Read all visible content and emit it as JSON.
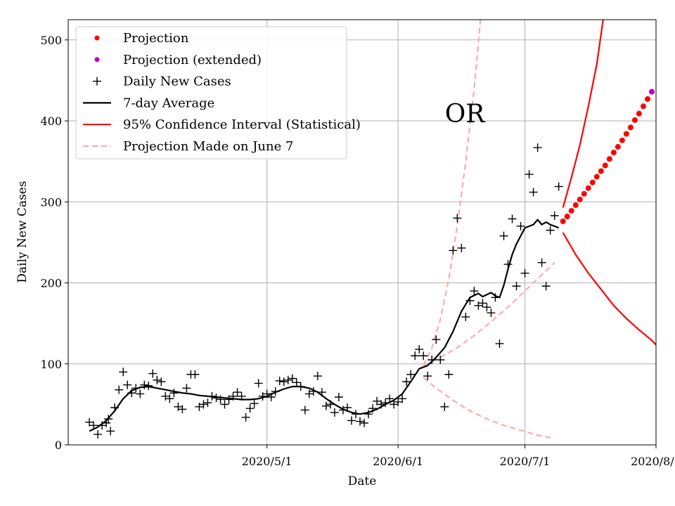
{
  "chart_data": {
    "type": "line",
    "title": "",
    "xlabel": "Date",
    "ylabel": "Daily New Cases",
    "annotation": "OR",
    "x_unit": "days since 2020-03-20",
    "xlim": [
      -5,
      134
    ],
    "ylim": [
      0,
      525
    ],
    "grid": true,
    "legend_location": "upper-left",
    "x_ticks": [
      {
        "day": 42,
        "label": "2020/5/1"
      },
      {
        "day": 73,
        "label": "2020/6/1"
      },
      {
        "day": 103,
        "label": "2020/7/1"
      },
      {
        "day": 134,
        "label": "2020/8/1"
      }
    ],
    "y_ticks": [
      0,
      100,
      200,
      300,
      400,
      500
    ],
    "legend": [
      {
        "key": "projection",
        "label": "Projection",
        "color": "#ff0000",
        "style": "dot"
      },
      {
        "key": "projection_extended",
        "label": "Projection (extended)",
        "color": "#bf00bf",
        "style": "dot"
      },
      {
        "key": "daily",
        "label": "Daily New Cases",
        "color": "#000000",
        "style": "plus"
      },
      {
        "key": "avg",
        "label": "7-day Average",
        "color": "#000000",
        "style": "line"
      },
      {
        "key": "ci",
        "label": "95% Confidence Interval (Statistical)",
        "color": "#ff0000",
        "style": "line"
      },
      {
        "key": "june7",
        "label": "Projection Made on June 7",
        "color": "#ffaaaa",
        "style": "dashed"
      }
    ],
    "series": [
      {
        "name": "Daily New Cases",
        "style": "plus",
        "color": "#000000",
        "points": [
          [
            0,
            28
          ],
          [
            1,
            24
          ],
          [
            2,
            13
          ],
          [
            3,
            24
          ],
          [
            4,
            27
          ],
          [
            4.5,
            32
          ],
          [
            5,
            17
          ],
          [
            6,
            46
          ],
          [
            7,
            68
          ],
          [
            8,
            90
          ],
          [
            9,
            74
          ],
          [
            10,
            64
          ],
          [
            11,
            70
          ],
          [
            12,
            63
          ],
          [
            13,
            74
          ],
          [
            14,
            73
          ],
          [
            15,
            88
          ],
          [
            16,
            80
          ],
          [
            17,
            78
          ],
          [
            18,
            60
          ],
          [
            19,
            57
          ],
          [
            20,
            64
          ],
          [
            21,
            47
          ],
          [
            22,
            44
          ],
          [
            23,
            70
          ],
          [
            24,
            87
          ],
          [
            25,
            87
          ],
          [
            26,
            47
          ],
          [
            27,
            50
          ],
          [
            28,
            52
          ],
          [
            29,
            60
          ],
          [
            30,
            58
          ],
          [
            31,
            56
          ],
          [
            32,
            50
          ],
          [
            33,
            56
          ],
          [
            34,
            60
          ],
          [
            35,
            65
          ],
          [
            36,
            60
          ],
          [
            37,
            34
          ],
          [
            38,
            45
          ],
          [
            39,
            51
          ],
          [
            40,
            76
          ],
          [
            41,
            60
          ],
          [
            42,
            63
          ],
          [
            43,
            59
          ],
          [
            44,
            66
          ],
          [
            45,
            79
          ],
          [
            46,
            78
          ],
          [
            47,
            80
          ],
          [
            48,
            82
          ],
          [
            49,
            77
          ],
          [
            50,
            72
          ],
          [
            51,
            43
          ],
          [
            52,
            63
          ],
          [
            53,
            66
          ],
          [
            54,
            85
          ],
          [
            55,
            65
          ],
          [
            56,
            48
          ],
          [
            57,
            50
          ],
          [
            58,
            40
          ],
          [
            59,
            59
          ],
          [
            60,
            43
          ],
          [
            61,
            46
          ],
          [
            62,
            30
          ],
          [
            63,
            38
          ],
          [
            64,
            29
          ],
          [
            65,
            27
          ],
          [
            66,
            38
          ],
          [
            67,
            45
          ],
          [
            68,
            54
          ],
          [
            69,
            50
          ],
          [
            70,
            52
          ],
          [
            71,
            57
          ],
          [
            72,
            50
          ],
          [
            73,
            53
          ],
          [
            74,
            57
          ],
          [
            75,
            78
          ],
          [
            76,
            87
          ],
          [
            77,
            110
          ],
          [
            78,
            118
          ],
          [
            79,
            110
          ],
          [
            80,
            85
          ],
          [
            81,
            105
          ],
          [
            82,
            130
          ],
          [
            83,
            105
          ],
          [
            84,
            47
          ],
          [
            85,
            87
          ],
          [
            86,
            240
          ],
          [
            87,
            280
          ],
          [
            88,
            243
          ],
          [
            89,
            158
          ],
          [
            90,
            178
          ],
          [
            91,
            190
          ],
          [
            92,
            172
          ],
          [
            93,
            175
          ],
          [
            94,
            170
          ],
          [
            95,
            163
          ],
          [
            96,
            182
          ],
          [
            97,
            125
          ],
          [
            98,
            258
          ],
          [
            99,
            223
          ],
          [
            100,
            279
          ],
          [
            101,
            196
          ],
          [
            102,
            270
          ],
          [
            103,
            212
          ],
          [
            104,
            334
          ],
          [
            105,
            312
          ],
          [
            106,
            367
          ],
          [
            107,
            225
          ],
          [
            108,
            196
          ],
          [
            109,
            265
          ],
          [
            110,
            283
          ],
          [
            111,
            319
          ]
        ]
      },
      {
        "name": "7-day Average",
        "style": "line",
        "color": "#000000",
        "points": [
          [
            0,
            17
          ],
          [
            2,
            22
          ],
          [
            4,
            30
          ],
          [
            6,
            42
          ],
          [
            8,
            57
          ],
          [
            10,
            67
          ],
          [
            12,
            71
          ],
          [
            14,
            72
          ],
          [
            16,
            70
          ],
          [
            18,
            68
          ],
          [
            20,
            66
          ],
          [
            22,
            64
          ],
          [
            24,
            63
          ],
          [
            26,
            61
          ],
          [
            28,
            60
          ],
          [
            30,
            59
          ],
          [
            32,
            58
          ],
          [
            34,
            57
          ],
          [
            36,
            56
          ],
          [
            38,
            56
          ],
          [
            40,
            57
          ],
          [
            42,
            60
          ],
          [
            44,
            65
          ],
          [
            46,
            69
          ],
          [
            48,
            72
          ],
          [
            50,
            72
          ],
          [
            52,
            70
          ],
          [
            54,
            65
          ],
          [
            56,
            57
          ],
          [
            58,
            50
          ],
          [
            60,
            44
          ],
          [
            62,
            40
          ],
          [
            64,
            38
          ],
          [
            66,
            40
          ],
          [
            68,
            44
          ],
          [
            70,
            50
          ],
          [
            72,
            55
          ],
          [
            74,
            63
          ],
          [
            76,
            78
          ],
          [
            78,
            94
          ],
          [
            80,
            98
          ],
          [
            82,
            108
          ],
          [
            84,
            120
          ],
          [
            86,
            140
          ],
          [
            88,
            165
          ],
          [
            90,
            182
          ],
          [
            92,
            187
          ],
          [
            93,
            183
          ],
          [
            95,
            188
          ],
          [
            96,
            184
          ],
          [
            97,
            182
          ],
          [
            98,
            197
          ],
          [
            99,
            217
          ],
          [
            100,
            235
          ],
          [
            101,
            248
          ],
          [
            102,
            258
          ],
          [
            103,
            268
          ],
          [
            104,
            270
          ],
          [
            105,
            272
          ],
          [
            106,
            278
          ],
          [
            107,
            272
          ],
          [
            108,
            275
          ],
          [
            109,
            272
          ],
          [
            110,
            270
          ],
          [
            111,
            268
          ]
        ]
      },
      {
        "name": "Projection",
        "style": "dot",
        "color": "#ff0000",
        "points": [
          [
            112,
            276
          ],
          [
            113,
            282
          ],
          [
            114,
            289
          ],
          [
            115,
            296
          ],
          [
            116,
            303
          ],
          [
            117,
            310
          ],
          [
            118,
            317
          ],
          [
            119,
            324
          ],
          [
            120,
            331
          ],
          [
            121,
            338
          ],
          [
            122,
            345
          ],
          [
            123,
            353
          ],
          [
            124,
            361
          ],
          [
            125,
            368
          ],
          [
            126,
            376
          ],
          [
            127,
            384
          ],
          [
            128,
            392
          ],
          [
            129,
            401
          ],
          [
            130,
            409
          ],
          [
            131,
            418
          ],
          [
            132,
            427
          ]
        ]
      },
      {
        "name": "Projection (extended)",
        "style": "dot",
        "color": "#bf00bf",
        "points": [
          [
            133,
            436
          ]
        ]
      },
      {
        "name": "95% CI upper",
        "style": "line",
        "color": "#ff0000",
        "points": [
          [
            112,
            293
          ],
          [
            114,
            330
          ],
          [
            116,
            370
          ],
          [
            118,
            418
          ],
          [
            120,
            470
          ],
          [
            121.5,
            525
          ]
        ]
      },
      {
        "name": "95% CI lower",
        "style": "line",
        "color": "#ff0000",
        "points": [
          [
            112,
            262
          ],
          [
            115,
            235
          ],
          [
            118,
            212
          ],
          [
            121,
            192
          ],
          [
            124,
            172
          ],
          [
            127,
            156
          ],
          [
            130,
            142
          ],
          [
            133,
            129
          ],
          [
            134.5,
            121
          ]
        ]
      },
      {
        "name": "June 7 upper",
        "style": "dashed",
        "color": "#ffaaaa",
        "points": [
          [
            79,
            98
          ],
          [
            81,
            120
          ],
          [
            83,
            155
          ],
          [
            85,
            205
          ],
          [
            87,
            270
          ],
          [
            89,
            350
          ],
          [
            91,
            440
          ],
          [
            92.5,
            525
          ]
        ]
      },
      {
        "name": "June 7 middle",
        "style": "dashed",
        "color": "#ffaaaa",
        "points": [
          [
            79,
            98
          ],
          [
            83,
            108
          ],
          [
            87,
            120
          ],
          [
            91,
            135
          ],
          [
            95,
            152
          ],
          [
            99,
            170
          ],
          [
            103,
            190
          ],
          [
            107,
            210
          ],
          [
            110,
            225
          ]
        ]
      },
      {
        "name": "June 7 lower",
        "style": "dashed",
        "color": "#ffaaaa",
        "points": [
          [
            79,
            83
          ],
          [
            82,
            70
          ],
          [
            86,
            55
          ],
          [
            90,
            42
          ],
          [
            94,
            32
          ],
          [
            98,
            24
          ],
          [
            102,
            18
          ],
          [
            106,
            12
          ],
          [
            110,
            8
          ]
        ]
      }
    ]
  }
}
